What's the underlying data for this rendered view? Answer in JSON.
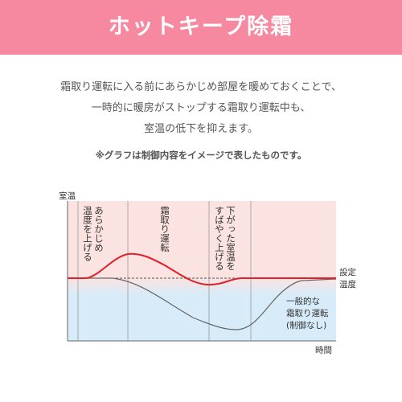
{
  "header": {
    "title": "ホットキープ除霜"
  },
  "description": {
    "lines": [
      "霜取り運転に入る前にあらかじめ部屋を暖めておくことで、",
      "一時的に暖房がストップする霜取り運転中も、",
      "室温の低下を抑えます。"
    ]
  },
  "note": "※グラフは制御内容をイメージで表したものです。",
  "diagram": {
    "y_axis_label": "室温",
    "x_axis_label": "時間",
    "setpoint_label": [
      "設定",
      "温度"
    ],
    "phases": [
      {
        "lines": [
          "あらかじめ",
          "温度を上げる"
        ]
      },
      {
        "lines": [
          "霜取り運転"
        ]
      },
      {
        "lines": [
          "下がった室温を",
          "すばやく上げる"
        ]
      }
    ],
    "general_label": [
      "一般的な",
      "霜取り運転",
      "(制御なし)"
    ],
    "colors": {
      "header": "#f6899f",
      "warm_zone": "#fbe0e0",
      "cool_zone": "#d6ecf8",
      "hotkeep_curve": "#e0202a",
      "general_curve": "#666666"
    }
  }
}
